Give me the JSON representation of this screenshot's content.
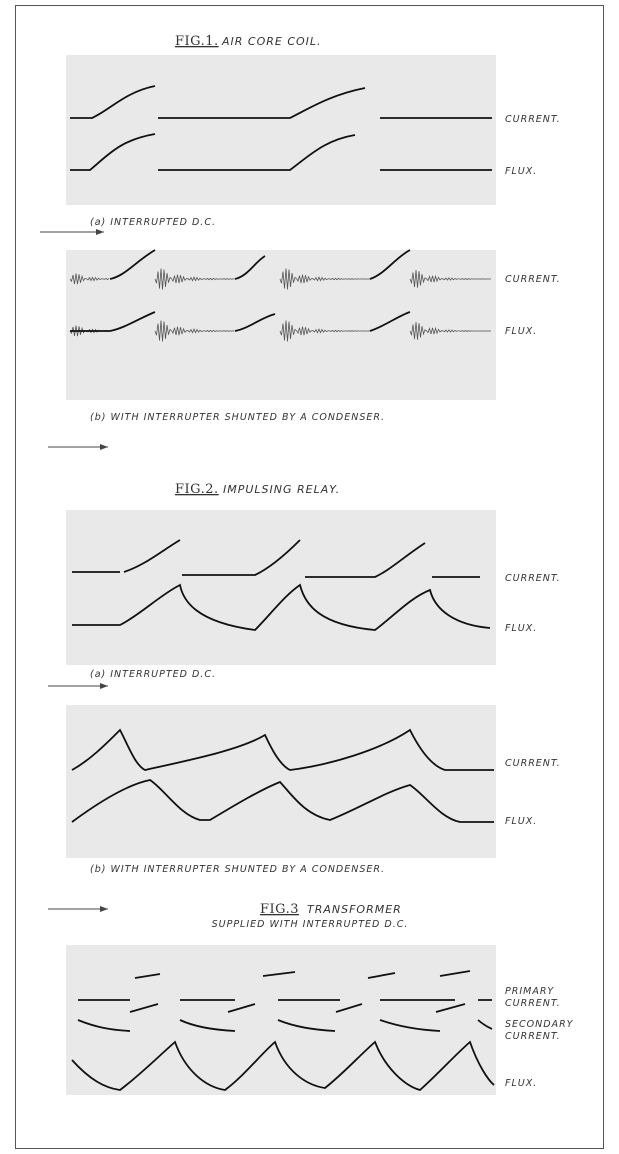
{
  "figures": [
    {
      "number": "FIG.1.",
      "title": "AIR CORE COIL.",
      "panels": [
        {
          "labels": [
            {
              "lines": [
                "CURRENT."
              ]
            },
            {
              "lines": [
                "FLUX."
              ]
            }
          ],
          "caption": "(a) INTERRUPTED D.C."
        },
        {
          "labels": [
            {
              "lines": [
                "CURRENT."
              ]
            },
            {
              "lines": [
                "FLUX."
              ]
            }
          ],
          "caption": "(b) WITH INTERRUPTER SHUNTED BY A CONDENSER."
        }
      ]
    },
    {
      "number": "FIG.2.",
      "title": "IMPULSING RELAY.",
      "panels": [
        {
          "labels": [
            {
              "lines": [
                "CURRENT."
              ]
            },
            {
              "lines": [
                "FLUX."
              ]
            }
          ],
          "caption": "(a) INTERRUPTED D.C."
        },
        {
          "labels": [
            {
              "lines": [
                "CURRENT."
              ]
            },
            {
              "lines": [
                "FLUX."
              ]
            }
          ],
          "caption": "(b) WITH INTERRUPTER SHUNTED BY A CONDENSER."
        }
      ]
    },
    {
      "number": "FIG.3",
      "title": "TRANSFORMER",
      "subtitle": "SUPPLIED WITH INTERRUPTED D.C.",
      "panels": [
        {
          "labels": [
            {
              "lines": [
                "PRIMARY",
                "CURRENT."
              ]
            },
            {
              "lines": [
                "SECONDARY",
                "CURRENT."
              ]
            },
            {
              "lines": [
                "FLUX."
              ]
            }
          ]
        }
      ]
    }
  ]
}
